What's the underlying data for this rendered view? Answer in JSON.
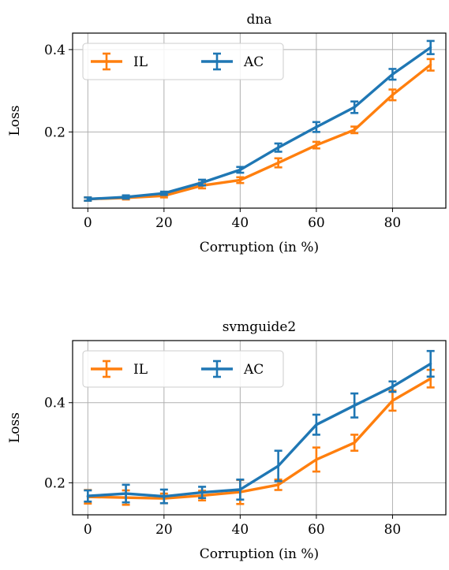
{
  "colors": {
    "IL": "#ff7f0e",
    "AC": "#1f77b4",
    "grid": "#b0b0b0",
    "legend_border": "#cccccc"
  },
  "chart_data": [
    {
      "type": "line",
      "title": "dna",
      "xlabel": "Corruption (in %)",
      "ylabel": "Loss",
      "x": [
        0,
        10,
        20,
        30,
        40,
        50,
        60,
        70,
        80,
        90
      ],
      "xlim": [
        -4,
        94
      ],
      "ylim": [
        0.015,
        0.44
      ],
      "xticks": [
        0,
        20,
        40,
        60,
        80
      ],
      "yticks": [
        0.2,
        0.4
      ],
      "ytick_labels": [
        "0.2",
        "0.4"
      ],
      "grid": true,
      "legend": "top-left",
      "series": [
        {
          "name": "IL",
          "color": "#ff7f0e",
          "values": [
            0.037,
            0.04,
            0.045,
            0.07,
            0.083,
            0.125,
            0.168,
            0.205,
            0.29,
            0.363
          ],
          "errors": [
            0.004,
            0.004,
            0.004,
            0.007,
            0.007,
            0.011,
            0.008,
            0.008,
            0.013,
            0.014
          ]
        },
        {
          "name": "AC",
          "color": "#1f77b4",
          "values": [
            0.037,
            0.042,
            0.051,
            0.077,
            0.108,
            0.162,
            0.212,
            0.26,
            0.34,
            0.405
          ],
          "errors": [
            0.004,
            0.004,
            0.004,
            0.007,
            0.007,
            0.01,
            0.012,
            0.014,
            0.013,
            0.016
          ]
        }
      ]
    },
    {
      "type": "line",
      "title": "svmguide2",
      "xlabel": "Corruption (in %)",
      "ylabel": "Loss",
      "x": [
        0,
        10,
        20,
        30,
        40,
        50,
        60,
        70,
        80,
        90
      ],
      "xlim": [
        -4,
        94
      ],
      "ylim": [
        0.12,
        0.555
      ],
      "xticks": [
        0,
        20,
        40,
        60,
        80
      ],
      "yticks": [
        0.2,
        0.4
      ],
      "ytick_labels": [
        "0.2",
        "0.4"
      ],
      "grid": true,
      "legend": "top-left",
      "series": [
        {
          "name": "IL",
          "color": "#ff7f0e",
          "values": [
            0.165,
            0.163,
            0.161,
            0.168,
            0.177,
            0.195,
            0.258,
            0.3,
            0.405,
            0.46
          ],
          "errors": [
            0.017,
            0.018,
            0.012,
            0.012,
            0.03,
            0.013,
            0.03,
            0.02,
            0.025,
            0.022
          ]
        },
        {
          "name": "AC",
          "color": "#1f77b4",
          "values": [
            0.167,
            0.173,
            0.166,
            0.176,
            0.183,
            0.242,
            0.345,
            0.393,
            0.44,
            0.497
          ],
          "errors": [
            0.014,
            0.022,
            0.017,
            0.014,
            0.025,
            0.038,
            0.025,
            0.03,
            0.013,
            0.032
          ]
        }
      ]
    }
  ]
}
